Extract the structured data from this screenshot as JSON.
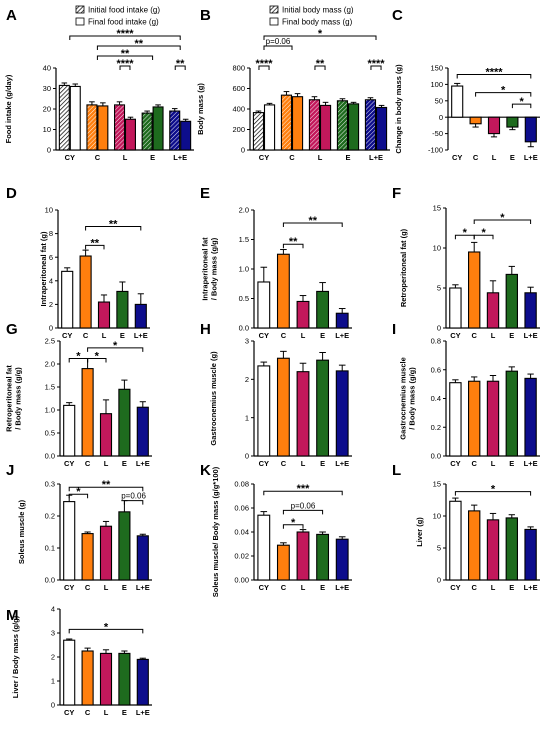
{
  "colors": {
    "CY": "#ffffff",
    "C": "#ff7f0e",
    "L": "#c2185b",
    "E": "#1e6b1e",
    "L+E": "#0d0d8c",
    "axis": "#000000"
  },
  "chart_data": [
    {
      "id": "A",
      "letter": "A",
      "type": "bar",
      "paired": true,
      "ylabel": "Food intake (g/day)",
      "ylim": [
        0,
        40
      ],
      "yticks": [
        0,
        10,
        20,
        30,
        40
      ],
      "categories": [
        "CY",
        "C",
        "L",
        "E",
        "L+E"
      ],
      "legend": [
        "Initial food intake (g)",
        "Final food intake (g)"
      ],
      "series": [
        {
          "name": "Initial food intake (g)",
          "values": [
            31.5,
            22,
            22,
            18,
            19
          ],
          "errors": [
            1.2,
            1.5,
            1.5,
            1,
            1.2
          ]
        },
        {
          "name": "Final food intake (g)",
          "values": [
            31,
            21.5,
            15,
            21,
            14
          ],
          "errors": [
            1.2,
            1.5,
            1,
            1,
            1
          ]
        }
      ],
      "sig": [
        {
          "label": "****",
          "from": 0,
          "to": 4,
          "tier": 4
        },
        {
          "label": "**",
          "from": 1,
          "to": 4,
          "tier": 3
        },
        {
          "label": "**",
          "from": 1,
          "to": 3,
          "tier": 2
        },
        {
          "label": "****",
          "from": 2,
          "to": 2,
          "tier": 1
        },
        {
          "label": "**",
          "from": 4,
          "to": 4,
          "tier": 1
        }
      ]
    },
    {
      "id": "B",
      "letter": "B",
      "type": "bar",
      "paired": true,
      "ylabel": "Body mass (g)",
      "ylim": [
        0,
        800
      ],
      "yticks": [
        0,
        200,
        400,
        600,
        800
      ],
      "categories": [
        "CY",
        "C",
        "L",
        "E",
        "L+E"
      ],
      "legend": [
        "Initial body mass (g)",
        "Final body mass (g)"
      ],
      "series": [
        {
          "name": "Initial body mass (g)",
          "values": [
            365,
            535,
            490,
            480,
            490
          ],
          "errors": [
            15,
            35,
            30,
            20,
            20
          ]
        },
        {
          "name": "Final body mass (g)",
          "values": [
            440,
            520,
            435,
            450,
            415
          ],
          "errors": [
            15,
            30,
            30,
            15,
            20
          ]
        }
      ],
      "sig": [
        {
          "label": "*",
          "from": 0,
          "to": 4,
          "tier": 4
        },
        {
          "label": "p=0.06",
          "from": 0,
          "to": 1,
          "tier": 3
        },
        {
          "label": "****",
          "from": 0,
          "to": 0,
          "tier": 1
        },
        {
          "label": "**",
          "from": 2,
          "to": 2,
          "tier": 1
        },
        {
          "label": "****",
          "from": 4,
          "to": 4,
          "tier": 1
        }
      ]
    },
    {
      "id": "C",
      "letter": "C",
      "type": "bar",
      "ylabel": "Change in body mass (g)",
      "ylim": [
        -100,
        150
      ],
      "yticks": [
        -100,
        -50,
        0,
        50,
        100,
        150
      ],
      "categories": [
        "CY",
        "C",
        "L",
        "E",
        "L+E"
      ],
      "values": [
        95,
        -20,
        -50,
        -30,
        -75
      ],
      "errors": [
        8,
        10,
        10,
        8,
        15
      ],
      "sig": [
        {
          "label": "****",
          "from": 0,
          "to": 4,
          "y": 130
        },
        {
          "label": "*",
          "from": 1,
          "to": 4,
          "y": 75
        },
        {
          "label": "*",
          "from": 3,
          "to": 4,
          "y": 40
        }
      ]
    },
    {
      "id": "D",
      "letter": "D",
      "type": "bar",
      "ylabel": "Intraperitoneal fat (g)",
      "ylim": [
        0,
        10
      ],
      "yticks": [
        0,
        2,
        4,
        6,
        8,
        10
      ],
      "categories": [
        "CY",
        "C",
        "L",
        "E",
        "L+E"
      ],
      "values": [
        4.8,
        6.1,
        2.2,
        3.1,
        2.0
      ],
      "errors": [
        0.3,
        0.5,
        0.6,
        0.8,
        0.9
      ],
      "sig": [
        {
          "label": "**",
          "from": 1,
          "to": 4,
          "y": 8.6
        },
        {
          "label": "**",
          "from": 1,
          "to": 2,
          "y": 7.0
        }
      ]
    },
    {
      "id": "E",
      "letter": "E",
      "type": "bar",
      "ylabel": "Intraperitoneal fat / Body mass (g/g)",
      "ylim": [
        0,
        2.0
      ],
      "yticks": [
        0,
        0.5,
        1.0,
        1.5,
        2.0
      ],
      "categories": [
        "CY",
        "C",
        "L",
        "E",
        "L+E"
      ],
      "values": [
        0.78,
        1.25,
        0.45,
        0.62,
        0.25
      ],
      "errors": [
        0.25,
        0.08,
        0.1,
        0.15,
        0.08
      ],
      "sig": [
        {
          "label": "**",
          "from": 1,
          "to": 4,
          "y": 1.78
        },
        {
          "label": "**",
          "from": 1,
          "to": 2,
          "y": 1.42
        }
      ]
    },
    {
      "id": "F",
      "letter": "F",
      "type": "bar",
      "ylabel": "Retroperitoneal fat (g)",
      "ylim": [
        0,
        15
      ],
      "yticks": [
        0,
        5,
        10,
        15
      ],
      "categories": [
        "CY",
        "C",
        "L",
        "E",
        "L+E"
      ],
      "values": [
        5.0,
        9.5,
        4.4,
        6.7,
        4.4
      ],
      "errors": [
        0.4,
        1.2,
        1.5,
        1.0,
        0.7
      ],
      "sig": [
        {
          "label": "*",
          "from": 1,
          "to": 4,
          "y": 13.5
        },
        {
          "label": "*",
          "from": 0,
          "to": 1,
          "y": 11.6
        },
        {
          "label": "*",
          "from": 1,
          "to": 2,
          "y": 11.6
        }
      ]
    },
    {
      "id": "G",
      "letter": "G",
      "type": "bar",
      "ylabel": "Retroperitoneal fat / Body mass (g/g)",
      "ylim": [
        0,
        2.5
      ],
      "yticks": [
        0,
        0.5,
        1.0,
        1.5,
        2.0,
        2.5
      ],
      "categories": [
        "CY",
        "C",
        "L",
        "E",
        "L+E"
      ],
      "values": [
        1.1,
        1.9,
        0.92,
        1.45,
        1.06
      ],
      "errors": [
        0.06,
        0.22,
        0.3,
        0.2,
        0.12
      ],
      "sig": [
        {
          "label": "*",
          "from": 1,
          "to": 4,
          "y": 2.35
        },
        {
          "label": "*",
          "from": 0,
          "to": 1,
          "y": 2.12
        },
        {
          "label": "*",
          "from": 1,
          "to": 2,
          "y": 2.12
        }
      ]
    },
    {
      "id": "H",
      "letter": "H",
      "type": "bar",
      "ylabel": "Gastrocnemius muscle (g)",
      "ylim": [
        0,
        3
      ],
      "yticks": [
        0,
        1,
        2,
        3
      ],
      "categories": [
        "CY",
        "C",
        "L",
        "E",
        "L+E"
      ],
      "values": [
        2.35,
        2.55,
        2.2,
        2.5,
        2.22
      ],
      "errors": [
        0.1,
        0.18,
        0.22,
        0.2,
        0.15
      ],
      "sig": []
    },
    {
      "id": "I",
      "letter": "I",
      "type": "bar",
      "ylabel": "Gastrocnemius muscle / Body mass (g/g)",
      "ylim": [
        0,
        0.8
      ],
      "yticks": [
        0,
        0.2,
        0.4,
        0.6,
        0.8
      ],
      "categories": [
        "CY",
        "C",
        "L",
        "E",
        "L+E"
      ],
      "values": [
        0.51,
        0.52,
        0.52,
        0.59,
        0.54
      ],
      "errors": [
        0.02,
        0.03,
        0.04,
        0.03,
        0.03
      ],
      "sig": []
    },
    {
      "id": "J",
      "letter": "J",
      "type": "bar",
      "ylabel": "Soleus muscle (g)",
      "ylim": [
        0,
        0.3
      ],
      "yticks": [
        0,
        0.1,
        0.2,
        0.3
      ],
      "categories": [
        "CY",
        "C",
        "L",
        "E",
        "L+E"
      ],
      "values": [
        0.245,
        0.145,
        0.168,
        0.213,
        0.138
      ],
      "errors": [
        0.02,
        0.005,
        0.015,
        0.035,
        0.005
      ],
      "sig": [
        {
          "label": "**",
          "from": 0,
          "to": 4,
          "y": 0.29
        },
        {
          "label": "*",
          "from": 0,
          "to": 1,
          "y": 0.268
        },
        {
          "label": "p=0.06",
          "from": 3,
          "to": 4,
          "y": 0.248
        }
      ]
    },
    {
      "id": "K",
      "letter": "K",
      "type": "bar",
      "ylabel": "Soleus muscle/ Body mass (g/g*100)",
      "ylim": [
        0,
        0.08
      ],
      "yticks": [
        0,
        0.02,
        0.04,
        0.06,
        0.08
      ],
      "categories": [
        "CY",
        "C",
        "L",
        "E",
        "L+E"
      ],
      "values": [
        0.054,
        0.029,
        0.04,
        0.038,
        0.034
      ],
      "errors": [
        0.003,
        0.002,
        0.002,
        0.002,
        0.002
      ],
      "sig": [
        {
          "label": "***",
          "from": 0,
          "to": 4,
          "y": 0.074
        },
        {
          "label": "p=0.06",
          "from": 1,
          "to": 3,
          "y": 0.058
        },
        {
          "label": "*",
          "from": 1,
          "to": 2,
          "y": 0.046
        }
      ]
    },
    {
      "id": "L",
      "letter": "L",
      "type": "bar",
      "ylabel": "Liver (g)",
      "ylim": [
        0,
        15
      ],
      "yticks": [
        0,
        5,
        10,
        15
      ],
      "categories": [
        "CY",
        "C",
        "L",
        "E",
        "L+E"
      ],
      "values": [
        12.3,
        10.8,
        9.4,
        9.7,
        7.9
      ],
      "errors": [
        0.5,
        0.9,
        1.0,
        0.5,
        0.4
      ],
      "sig": [
        {
          "label": "*",
          "from": 0,
          "to": 4,
          "y": 13.8
        }
      ]
    },
    {
      "id": "M",
      "letter": "M",
      "type": "bar",
      "ylabel": "Liver / Body mass (g/g)",
      "ylim": [
        0,
        4
      ],
      "yticks": [
        0,
        1,
        2,
        3,
        4
      ],
      "categories": [
        "CY",
        "C",
        "L",
        "E",
        "L+E"
      ],
      "values": [
        2.7,
        2.25,
        2.15,
        2.15,
        1.9
      ],
      "errors": [
        0.05,
        0.12,
        0.15,
        0.1,
        0.05
      ],
      "sig": [
        {
          "label": "*",
          "from": 0,
          "to": 4,
          "y": 3.15
        }
      ]
    }
  ]
}
